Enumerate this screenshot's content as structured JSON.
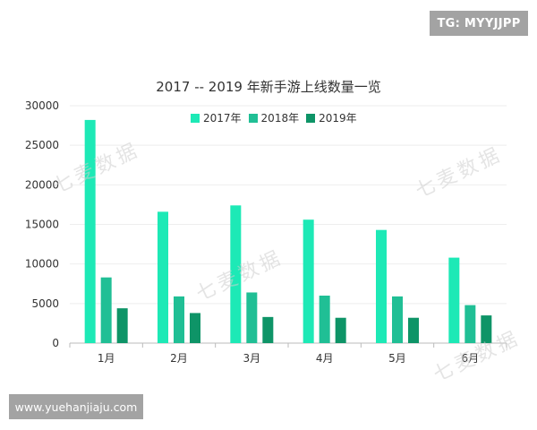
{
  "badges": {
    "telegram": "TG: MYYJJPP",
    "website": "www.yuehanjiaju.com"
  },
  "watermark_text": "七麦数据",
  "chart_data": {
    "type": "bar",
    "title": "2017 -- 2019 年新手游上线数量一览",
    "xlabel": "",
    "ylabel": "",
    "categories": [
      "1月",
      "2月",
      "3月",
      "4月",
      "5月",
      "6月"
    ],
    "series": [
      {
        "name": "2017年",
        "color": "#1de9b6",
        "values": [
          28200,
          16600,
          17400,
          15600,
          14300,
          10800
        ]
      },
      {
        "name": "2018年",
        "color": "#20bf95",
        "values": [
          8300,
          5900,
          6400,
          6000,
          5900,
          4800
        ]
      },
      {
        "name": "2019年",
        "color": "#0e9467",
        "values": [
          4400,
          3800,
          3300,
          3200,
          3200,
          3500
        ]
      }
    ],
    "ylim": [
      0,
      30000
    ],
    "yticks": [
      0,
      5000,
      10000,
      15000,
      20000,
      25000,
      30000
    ],
    "grid": true,
    "legend": "top"
  }
}
